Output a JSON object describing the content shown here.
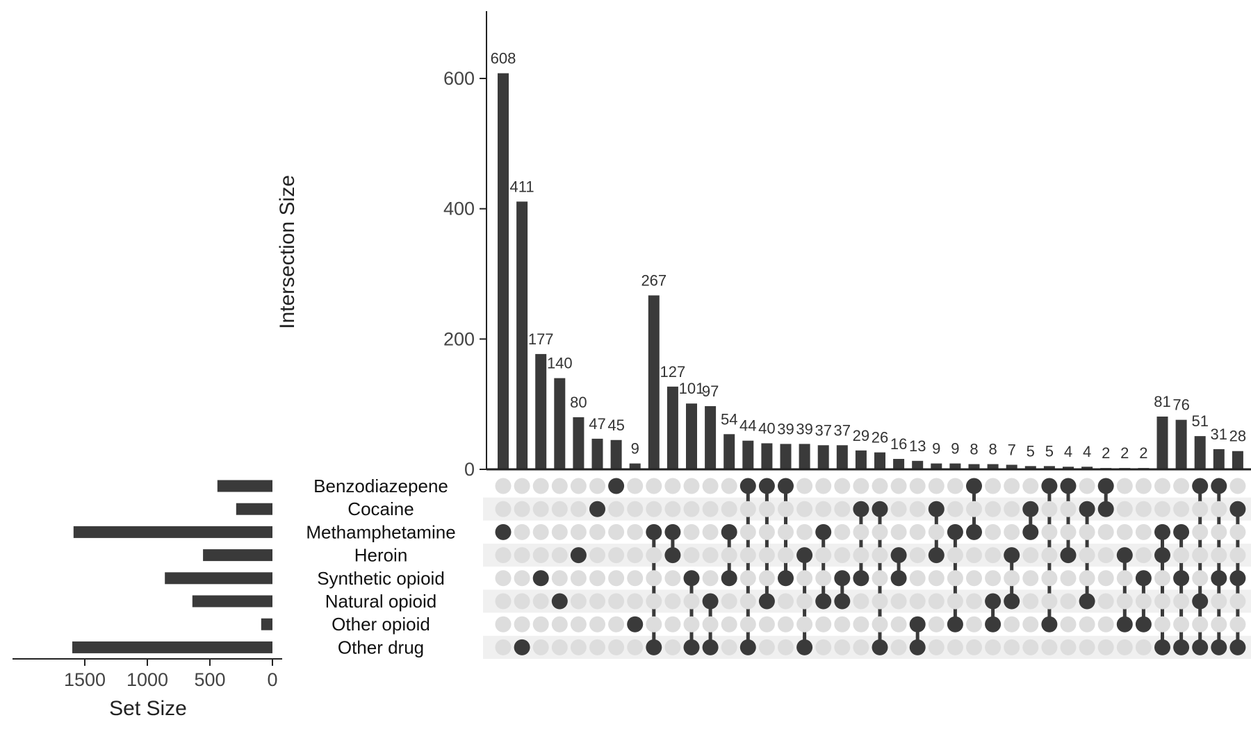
{
  "chart_data": {
    "type": "upset",
    "ylabel": "Intersection Size",
    "xlabel": "Set Size",
    "ylim": [
      0,
      700
    ],
    "yticks": [
      0,
      200,
      400,
      600
    ],
    "set_size_ticks": [
      1500,
      1000,
      500,
      0
    ],
    "set_size_lim": [
      0,
      1650
    ],
    "colors": {
      "bar": "#3a3a3a",
      "dot_on": "#3a3a3a",
      "dot_off": "#dddddd",
      "stripe": "#f0f0f0"
    },
    "sets": [
      {
        "name": "Benzodiazepene",
        "size": 440
      },
      {
        "name": "Cocaine",
        "size": 290
      },
      {
        "name": "Methamphetamine",
        "size": 1590
      },
      {
        "name": "Heroin",
        "size": 555
      },
      {
        "name": "Synthetic opioid",
        "size": 860
      },
      {
        "name": "Natural opioid",
        "size": 640
      },
      {
        "name": "Other opioid",
        "size": 90
      },
      {
        "name": "Other drug",
        "size": 1600
      }
    ],
    "intersections": [
      {
        "value": 608,
        "sets": [
          2
        ]
      },
      {
        "value": 411,
        "sets": [
          7
        ]
      },
      {
        "value": 177,
        "sets": [
          4
        ]
      },
      {
        "value": 140,
        "sets": [
          5
        ]
      },
      {
        "value": 80,
        "sets": [
          3
        ]
      },
      {
        "value": 47,
        "sets": [
          1
        ]
      },
      {
        "value": 45,
        "sets": [
          0
        ]
      },
      {
        "value": 9,
        "sets": [
          6
        ]
      },
      {
        "value": 267,
        "sets": [
          2,
          7
        ]
      },
      {
        "value": 127,
        "sets": [
          2,
          3
        ]
      },
      {
        "value": 101,
        "sets": [
          4,
          7
        ]
      },
      {
        "value": 97,
        "sets": [
          5,
          7
        ]
      },
      {
        "value": 54,
        "sets": [
          2,
          4
        ]
      },
      {
        "value": 44,
        "sets": [
          0,
          7
        ]
      },
      {
        "value": 40,
        "sets": [
          0,
          5
        ]
      },
      {
        "value": 39,
        "sets": [
          0,
          4
        ]
      },
      {
        "value": 39,
        "sets": [
          3,
          7
        ]
      },
      {
        "value": 37,
        "sets": [
          2,
          5
        ]
      },
      {
        "value": 37,
        "sets": [
          4,
          5
        ]
      },
      {
        "value": 29,
        "sets": [
          1,
          4
        ]
      },
      {
        "value": 26,
        "sets": [
          1,
          7
        ]
      },
      {
        "value": 16,
        "sets": [
          3,
          4
        ]
      },
      {
        "value": 13,
        "sets": [
          6,
          7
        ]
      },
      {
        "value": 9,
        "sets": [
          1,
          3
        ]
      },
      {
        "value": 9,
        "sets": [
          2,
          6
        ]
      },
      {
        "value": 8,
        "sets": [
          0,
          2
        ]
      },
      {
        "value": 8,
        "sets": [
          5,
          6
        ]
      },
      {
        "value": 7,
        "sets": [
          3,
          5
        ]
      },
      {
        "value": 5,
        "sets": [
          1,
          2
        ]
      },
      {
        "value": 5,
        "sets": [
          0,
          6
        ]
      },
      {
        "value": 4,
        "sets": [
          0,
          3
        ]
      },
      {
        "value": 4,
        "sets": [
          1,
          5
        ]
      },
      {
        "value": 2,
        "sets": [
          0,
          1
        ]
      },
      {
        "value": 2,
        "sets": [
          3,
          6
        ]
      },
      {
        "value": 2,
        "sets": [
          4,
          6
        ]
      },
      {
        "value": 81,
        "sets": [
          2,
          3,
          7
        ]
      },
      {
        "value": 76,
        "sets": [
          2,
          4,
          7
        ]
      },
      {
        "value": 51,
        "sets": [
          0,
          5,
          7
        ]
      },
      {
        "value": 31,
        "sets": [
          0,
          4,
          7
        ]
      },
      {
        "value": 28,
        "sets": [
          1,
          4,
          7
        ]
      }
    ]
  }
}
